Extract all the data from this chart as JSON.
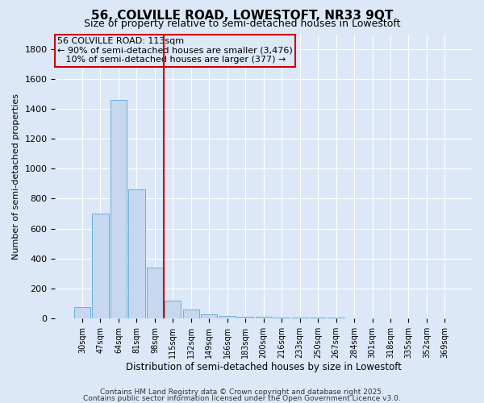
{
  "title": "56, COLVILLE ROAD, LOWESTOFT, NR33 9QT",
  "subtitle": "Size of property relative to semi-detached houses in Lowestoft",
  "xlabel": "Distribution of semi-detached houses by size in Lowestoft",
  "ylabel": "Number of semi-detached properties",
  "bar_color": "#c5d8f0",
  "bar_edge_color": "#6baed6",
  "vline_color": "#cc0000",
  "annotation_title": "56 COLVILLE ROAD: 113sqm",
  "annotation_line1": "← 90% of semi-detached houses are smaller (3,476)",
  "annotation_line2": "   10% of semi-detached houses are larger (377) →",
  "categories": [
    "30sqm",
    "47sqm",
    "64sqm",
    "81sqm",
    "98sqm",
    "115sqm",
    "132sqm",
    "149sqm",
    "166sqm",
    "183sqm",
    "200sqm",
    "216sqm",
    "233sqm",
    "250sqm",
    "267sqm",
    "284sqm",
    "301sqm",
    "318sqm",
    "335sqm",
    "352sqm",
    "369sqm"
  ],
  "values": [
    75,
    700,
    1460,
    860,
    340,
    120,
    60,
    25,
    18,
    12,
    8,
    6,
    4,
    3,
    2,
    1,
    1,
    1,
    0,
    0,
    1
  ],
  "vline_index": 4.5,
  "background_color": "#dce8f8",
  "grid_color": "#ffffff",
  "footnote1": "Contains HM Land Registry data © Crown copyright and database right 2025.",
  "footnote2": "Contains public sector information licensed under the Open Government Licence v3.0.",
  "ylim": [
    0,
    1900
  ],
  "yticks": [
    0,
    200,
    400,
    600,
    800,
    1000,
    1200,
    1400,
    1600,
    1800
  ]
}
